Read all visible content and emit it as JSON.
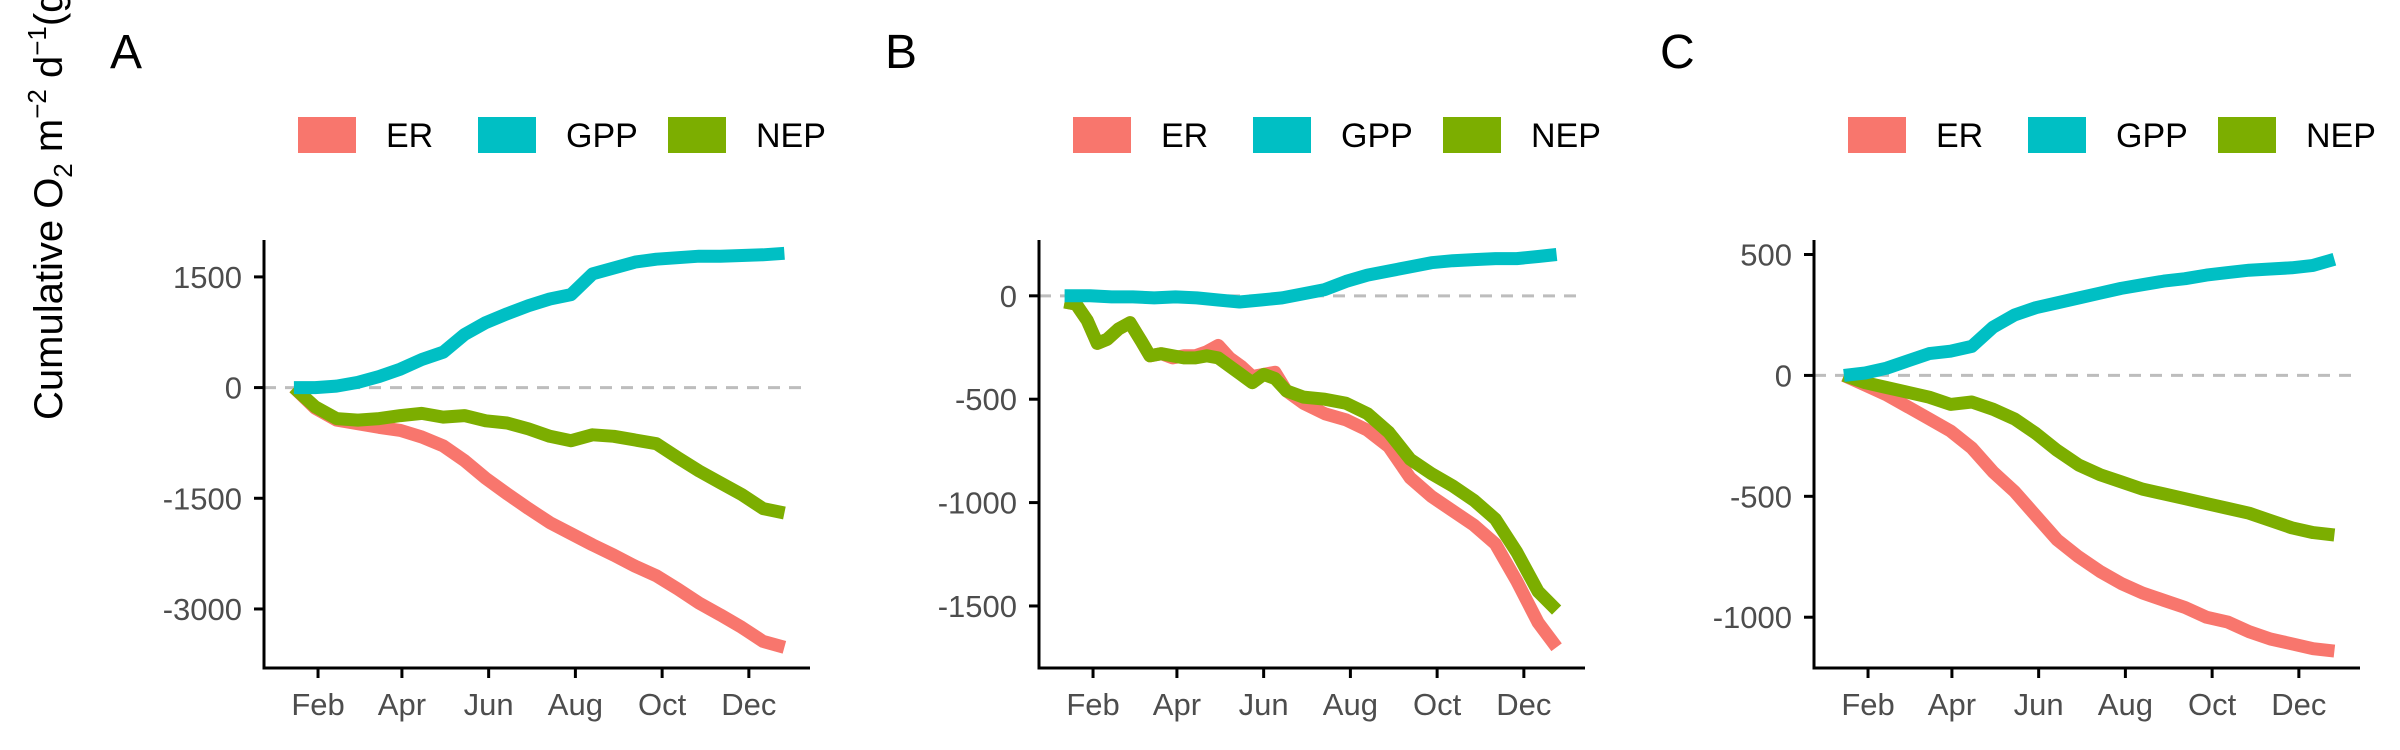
{
  "figure": {
    "ylabel": {
      "main": "Cumulative O",
      "sub1": "2",
      "mid": " m",
      "sup1": "−2",
      "mid2": " d",
      "sup2": "−1",
      "end": "(g)"
    },
    "colors": {
      "ER": "#F8766D",
      "GPP": "#00BFC4",
      "NEP": "#7CAE00",
      "zero_line": "#bdbdbd",
      "axis": "#000000",
      "tick_text": "#4d4d4d"
    }
  },
  "chart_data": [
    {
      "panel": "A",
      "type": "line",
      "legend": [
        "ER",
        "GPP",
        "NEP"
      ],
      "legend_position": "top",
      "x_ticks": [
        "Feb",
        "Apr",
        "Jun",
        "Aug",
        "Oct",
        "Dec"
      ],
      "x_tick_positions": [
        32,
        91,
        152,
        213,
        274,
        335
      ],
      "xlim": [
        -6,
        378
      ],
      "ylim": [
        -3800,
        2000
      ],
      "y_ticks": [
        1500,
        0,
        -1500,
        -3000
      ],
      "y_tick_labels": [
        "1500",
        "0",
        "-1500",
        "-3000"
      ],
      "zero_line": true,
      "grid": false,
      "series": [
        {
          "name": "ER",
          "x": [
            15,
            30,
            45,
            60,
            75,
            90,
            105,
            120,
            135,
            150,
            165,
            180,
            195,
            210,
            225,
            240,
            255,
            270,
            285,
            300,
            315,
            330,
            345,
            360
          ],
          "values": [
            0,
            -280,
            -440,
            -490,
            -540,
            -580,
            -670,
            -790,
            -990,
            -1230,
            -1440,
            -1640,
            -1830,
            -1980,
            -2130,
            -2270,
            -2420,
            -2550,
            -2730,
            -2920,
            -3080,
            -3250,
            -3440,
            -3520
          ]
        },
        {
          "name": "GPP",
          "x": [
            15,
            30,
            45,
            60,
            75,
            90,
            105,
            120,
            135,
            150,
            165,
            180,
            195,
            210,
            225,
            240,
            255,
            270,
            285,
            300,
            315,
            330,
            345,
            360
          ],
          "values": [
            0,
            0,
            20,
            70,
            150,
            250,
            380,
            480,
            720,
            880,
            1000,
            1110,
            1200,
            1260,
            1540,
            1620,
            1700,
            1740,
            1760,
            1780,
            1780,
            1790,
            1800,
            1820
          ]
        },
        {
          "name": "NEP",
          "x": [
            15,
            30,
            45,
            60,
            75,
            90,
            105,
            120,
            135,
            150,
            165,
            180,
            195,
            210,
            225,
            240,
            255,
            270,
            285,
            300,
            315,
            330,
            345,
            360
          ],
          "values": [
            0,
            -260,
            -420,
            -440,
            -420,
            -380,
            -350,
            -400,
            -380,
            -450,
            -480,
            -560,
            -660,
            -720,
            -640,
            -660,
            -710,
            -760,
            -950,
            -1130,
            -1290,
            -1450,
            -1640,
            -1700
          ]
        }
      ]
    },
    {
      "panel": "B",
      "type": "line",
      "legend": [
        "ER",
        "GPP",
        "NEP"
      ],
      "legend_position": "top",
      "x_ticks": [
        "Feb",
        "Apr",
        "Jun",
        "Aug",
        "Oct",
        "Dec"
      ],
      "x_tick_positions": [
        32,
        91,
        152,
        213,
        274,
        335
      ],
      "xlim": [
        -6,
        378
      ],
      "ylim": [
        -1800,
        270
      ],
      "y_ticks": [
        0,
        -500,
        -1000,
        -1500
      ],
      "y_tick_labels": [
        "0",
        "-500",
        "-1000",
        "-1500"
      ],
      "zero_line": true,
      "grid": false,
      "series": [
        {
          "name": "ER",
          "x": [
            12,
            20,
            28,
            35,
            42,
            50,
            58,
            66,
            72,
            80,
            88,
            96,
            104,
            112,
            120,
            128,
            136,
            144,
            152,
            160,
            168,
            180,
            195,
            210,
            225,
            240,
            255,
            270,
            285,
            300,
            315,
            330,
            345,
            358
          ],
          "values": [
            -30,
            -40,
            -120,
            -230,
            -210,
            -160,
            -130,
            -220,
            -290,
            -280,
            -300,
            -290,
            -290,
            -270,
            -240,
            -300,
            -340,
            -390,
            -380,
            -370,
            -460,
            -520,
            -570,
            -600,
            -650,
            -730,
            -880,
            -970,
            -1040,
            -1110,
            -1200,
            -1380,
            -1580,
            -1700
          ]
        },
        {
          "name": "GPP",
          "x": [
            12,
            30,
            45,
            60,
            75,
            90,
            105,
            120,
            135,
            150,
            165,
            180,
            195,
            210,
            225,
            240,
            255,
            270,
            285,
            300,
            315,
            330,
            345,
            358
          ],
          "values": [
            0,
            0,
            -5,
            -5,
            -10,
            -5,
            -10,
            -20,
            -30,
            -20,
            -10,
            10,
            30,
            70,
            100,
            120,
            140,
            160,
            170,
            175,
            180,
            180,
            190,
            200
          ]
        },
        {
          "name": "NEP",
          "x": [
            12,
            20,
            28,
            35,
            42,
            50,
            58,
            66,
            72,
            80,
            88,
            96,
            104,
            112,
            120,
            128,
            136,
            144,
            152,
            160,
            168,
            180,
            195,
            210,
            225,
            240,
            255,
            270,
            285,
            300,
            315,
            330,
            345,
            358
          ],
          "values": [
            -30,
            -40,
            -120,
            -230,
            -210,
            -160,
            -130,
            -220,
            -290,
            -280,
            -290,
            -300,
            -300,
            -290,
            -300,
            -340,
            -380,
            -420,
            -380,
            -400,
            -460,
            -490,
            -500,
            -520,
            -570,
            -660,
            -790,
            -860,
            -920,
            -990,
            -1080,
            -1240,
            -1430,
            -1520
          ]
        }
      ]
    },
    {
      "panel": "C",
      "type": "line",
      "legend": [
        "ER",
        "GPP",
        "NEP"
      ],
      "legend_position": "top",
      "x_ticks": [
        "Feb",
        "Apr",
        "Jun",
        "Aug",
        "Oct",
        "Dec"
      ],
      "x_tick_positions": [
        32,
        91,
        152,
        213,
        274,
        335
      ],
      "xlim": [
        -6,
        378
      ],
      "ylim": [
        -1210,
        560
      ],
      "y_ticks": [
        500,
        0,
        -500,
        -1000
      ],
      "y_tick_labels": [
        "500",
        "0",
        "-500",
        "-1000"
      ],
      "zero_line": true,
      "grid": false,
      "series": [
        {
          "name": "ER",
          "x": [
            15,
            30,
            45,
            60,
            75,
            90,
            105,
            120,
            135,
            150,
            165,
            180,
            195,
            210,
            225,
            240,
            255,
            270,
            285,
            300,
            315,
            330,
            345,
            360
          ],
          "values": [
            0,
            -40,
            -80,
            -130,
            -180,
            -230,
            -300,
            -400,
            -480,
            -580,
            -680,
            -750,
            -810,
            -860,
            -900,
            -930,
            -960,
            -1000,
            -1020,
            -1060,
            -1090,
            -1110,
            -1130,
            -1140
          ]
        },
        {
          "name": "GPP",
          "x": [
            15,
            30,
            45,
            60,
            75,
            90,
            105,
            120,
            135,
            150,
            165,
            180,
            195,
            210,
            225,
            240,
            255,
            270,
            285,
            300,
            315,
            330,
            345,
            360
          ],
          "values": [
            0,
            10,
            30,
            60,
            90,
            100,
            120,
            200,
            250,
            280,
            300,
            320,
            340,
            360,
            375,
            390,
            400,
            415,
            425,
            435,
            440,
            445,
            455,
            480
          ]
        },
        {
          "name": "NEP",
          "x": [
            15,
            30,
            45,
            60,
            75,
            90,
            105,
            120,
            135,
            150,
            165,
            180,
            195,
            210,
            225,
            240,
            255,
            270,
            285,
            300,
            315,
            330,
            345,
            360
          ],
          "values": [
            0,
            -30,
            -50,
            -70,
            -90,
            -120,
            -110,
            -140,
            -180,
            -240,
            -310,
            -370,
            -410,
            -440,
            -470,
            -490,
            -510,
            -530,
            -550,
            -570,
            -600,
            -630,
            -650,
            -660
          ]
        }
      ]
    }
  ]
}
